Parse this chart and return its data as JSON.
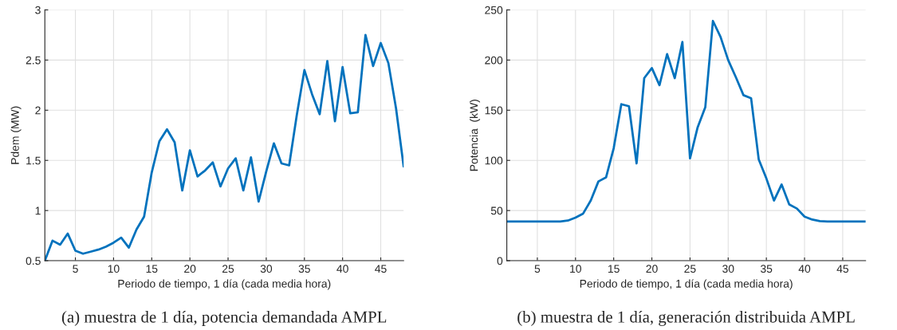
{
  "chart_data": [
    {
      "type": "line",
      "xlabel": "Periodo de tiempo, 1 día (cada media hora)",
      "ylabel": "Pdem (MW)",
      "annotations": [
        "(a) muestra de 1 día, potencia demandada AMPL"
      ],
      "xlim": [
        1,
        48
      ],
      "xticks": [
        5,
        10,
        15,
        20,
        25,
        30,
        35,
        40,
        45
      ],
      "ylim": [
        0.5,
        3
      ],
      "yticks": [
        0.5,
        1,
        1.5,
        2,
        2.5,
        3
      ],
      "grid": true,
      "x": [
        1,
        2,
        3,
        4,
        5,
        6,
        7,
        8,
        9,
        10,
        11,
        12,
        13,
        14,
        15,
        16,
        17,
        18,
        19,
        20,
        21,
        22,
        23,
        24,
        25,
        26,
        27,
        28,
        29,
        30,
        31,
        32,
        33,
        34,
        35,
        36,
        37,
        38,
        39,
        40,
        41,
        42,
        43,
        44,
        45,
        46,
        47,
        48
      ],
      "series": [
        {
          "color": "#0072bd",
          "values": [
            0.5,
            0.7,
            0.66,
            0.77,
            0.6,
            0.57,
            0.59,
            0.61,
            0.64,
            0.68,
            0.73,
            0.63,
            0.81,
            0.94,
            1.38,
            1.69,
            1.81,
            1.68,
            1.2,
            1.6,
            1.34,
            1.4,
            1.48,
            1.24,
            1.42,
            1.52,
            1.2,
            1.53,
            1.09,
            1.39,
            1.67,
            1.47,
            1.45,
            1.95,
            2.4,
            2.16,
            1.96,
            2.49,
            1.89,
            2.43,
            1.97,
            1.98,
            2.75,
            2.44,
            2.67,
            2.47,
            2.02,
            1.44
          ]
        }
      ]
    },
    {
      "type": "line",
      "xlabel": "Periodo de tiempo, 1 día (cada media hora)",
      "ylabel": "Potencia  (kW)",
      "annotations": [
        "(b) muestra de 1 día, generación distribuida AMPL"
      ],
      "xlim": [
        1,
        48
      ],
      "xticks": [
        5,
        10,
        15,
        20,
        25,
        30,
        35,
        40,
        45
      ],
      "ylim": [
        0,
        250
      ],
      "yticks": [
        0,
        50,
        100,
        150,
        200,
        250
      ],
      "grid": true,
      "x": [
        1,
        2,
        3,
        4,
        5,
        6,
        7,
        8,
        9,
        10,
        11,
        12,
        13,
        14,
        15,
        16,
        17,
        18,
        19,
        20,
        21,
        22,
        23,
        24,
        25,
        26,
        27,
        28,
        29,
        30,
        31,
        32,
        33,
        34,
        35,
        36,
        37,
        38,
        39,
        40,
        41,
        42,
        43,
        44,
        45,
        46,
        47,
        48
      ],
      "series": [
        {
          "color": "#0072bd",
          "values": [
            39,
            39,
            39,
            39,
            39,
            39,
            39,
            39,
            40,
            43,
            47,
            60,
            79,
            83,
            112,
            156,
            154,
            97,
            182,
            192,
            175,
            206,
            182,
            218,
            102,
            133,
            153,
            239,
            223,
            200,
            183,
            165,
            162,
            101,
            82,
            60,
            76,
            56,
            52,
            44,
            41,
            39.5,
            39,
            39,
            39,
            39,
            39,
            39
          ]
        }
      ]
    }
  ]
}
